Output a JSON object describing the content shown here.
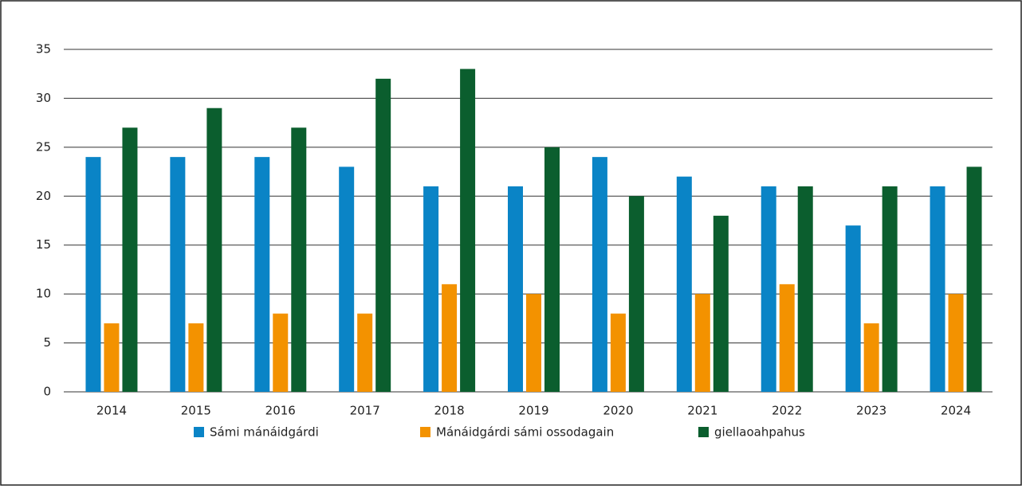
{
  "chart_data": {
    "type": "bar",
    "categories": [
      "2014",
      "2015",
      "2016",
      "2017",
      "2018",
      "2019",
      "2020",
      "2021",
      "2022",
      "2023",
      "2024"
    ],
    "series": [
      {
        "name": "Sámi mánáidgárdi",
        "color": "#0a84c6",
        "values": [
          24,
          24,
          24,
          23,
          21,
          21,
          24,
          22,
          21,
          17,
          21
        ]
      },
      {
        "name": "Mánáidgárdi sámi ossodagain",
        "color": "#f39200",
        "values": [
          7,
          7,
          8,
          8,
          11,
          10,
          8,
          10,
          11,
          7,
          10
        ]
      },
      {
        "name": "giellaoahpahus",
        "color": "#0b5e2e",
        "values": [
          27,
          29,
          27,
          32,
          33,
          25,
          20,
          18,
          21,
          21,
          23
        ]
      }
    ],
    "ylim": [
      0,
      35
    ],
    "yticks": [
      0,
      5,
      10,
      15,
      20,
      25,
      30,
      35
    ],
    "grid": true,
    "legend": "bottom"
  }
}
